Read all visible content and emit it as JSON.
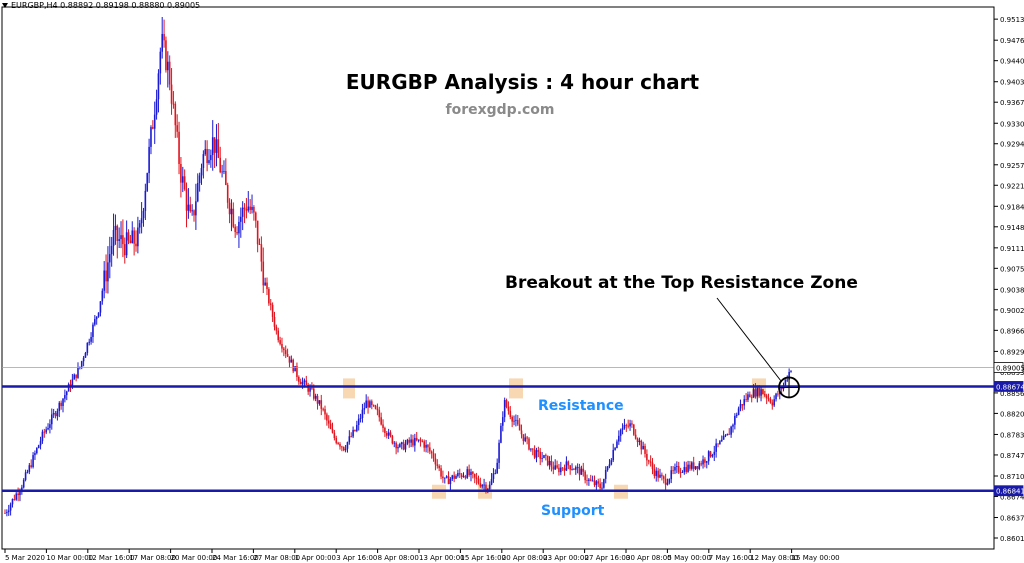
{
  "header": {
    "ticker": "EURGBP,H4  0.88892 0.89198 0.88880 0.89005"
  },
  "annotations": {
    "title": "EURGBP Analysis : 4 hour chart",
    "watermark": "forexgdp.com",
    "breakout": "Breakout at the Top Resistance Zone",
    "resistance": "Resistance",
    "support": "Support"
  },
  "colors": {
    "bull": "#1a1ad4",
    "bear": "#e0141e",
    "level_line": "#1a1aa8",
    "highlight": "#f5c99a",
    "zone_label": "#1e90ff"
  },
  "chart_data": {
    "type": "candlestick",
    "title": "EURGBP Analysis : 4 hour chart",
    "symbol": "EURGBP",
    "timeframe": "H4",
    "ohlc_current": {
      "open": 0.88892,
      "high": 0.89198,
      "low": 0.8888,
      "close": 0.89005
    },
    "ylim": [
      0.8601,
      0.9515
    ],
    "y_ticks": [
      "0.95130",
      "0.94760",
      "0.94400",
      "0.94030",
      "0.93670",
      "0.93300",
      "0.92940",
      "0.92570",
      "0.92210",
      "0.91840",
      "0.91480",
      "0.91110",
      "0.90750",
      "0.90380",
      "0.90020",
      "0.89660",
      "0.89290",
      "0.88930",
      "0.88560",
      "0.88200",
      "0.87830",
      "0.87470",
      "0.87100",
      "0.86740",
      "0.86370",
      "0.86010"
    ],
    "x_ticks": [
      "5 Mar 2020",
      "10 Mar 00:00",
      "12 Mar 16:00",
      "17 Mar 08:00",
      "20 Mar 00:00",
      "24 Mar 16:00",
      "27 Mar 08:00",
      "1 Apr 00:00",
      "3 Apr 16:00",
      "8 Apr 08:00",
      "13 Apr 00:00",
      "15 Apr 16:00",
      "20 Apr 08:00",
      "23 Apr 00:00",
      "27 Apr 16:00",
      "30 Apr 08:00",
      "5 May 00:00",
      "7 May 16:00",
      "12 May 08:00",
      "15 May 00:00"
    ],
    "price_labels": [
      {
        "value": "0.89005",
        "style": "current"
      },
      {
        "value": "0.88674",
        "style": "resistance"
      },
      {
        "value": "0.86841",
        "style": "support"
      }
    ],
    "levels": {
      "resistance": 0.88674,
      "support": 0.86841,
      "current": 0.89005
    },
    "price_path": [
      [
        0,
        0.8645
      ],
      [
        10,
        0.87
      ],
      [
        20,
        0.878
      ],
      [
        30,
        0.884
      ],
      [
        40,
        0.89
      ],
      [
        50,
        0.9
      ],
      [
        58,
        0.913
      ],
      [
        66,
        0.9115
      ],
      [
        72,
        0.913
      ],
      [
        80,
        0.935
      ],
      [
        84,
        0.9475
      ],
      [
        88,
        0.942
      ],
      [
        94,
        0.925
      ],
      [
        100,
        0.915
      ],
      [
        106,
        0.927
      ],
      [
        112,
        0.93
      ],
      [
        118,
        0.922
      ],
      [
        124,
        0.915
      ],
      [
        130,
        0.919
      ],
      [
        134,
        0.916
      ],
      [
        140,
        0.904
      ],
      [
        146,
        0.896
      ],
      [
        152,
        0.892
      ],
      [
        158,
        0.888
      ],
      [
        164,
        0.886
      ],
      [
        170,
        0.883
      ],
      [
        176,
        0.878
      ],
      [
        182,
        0.876
      ],
      [
        188,
        0.879
      ],
      [
        194,
        0.884
      ],
      [
        200,
        0.882
      ],
      [
        206,
        0.878
      ],
      [
        212,
        0.876
      ],
      [
        218,
        0.877
      ],
      [
        224,
        0.877
      ],
      [
        230,
        0.8745
      ],
      [
        236,
        0.87
      ],
      [
        242,
        0.871
      ],
      [
        248,
        0.8715
      ],
      [
        254,
        0.87
      ],
      [
        260,
        0.869
      ],
      [
        264,
        0.873
      ],
      [
        268,
        0.884
      ],
      [
        272,
        0.8815
      ],
      [
        278,
        0.878
      ],
      [
        284,
        0.875
      ],
      [
        290,
        0.874
      ],
      [
        296,
        0.872
      ],
      [
        302,
        0.873
      ],
      [
        308,
        0.872
      ],
      [
        314,
        0.87
      ],
      [
        320,
        0.869
      ],
      [
        324,
        0.873
      ],
      [
        330,
        0.879
      ],
      [
        336,
        0.88
      ],
      [
        342,
        0.876
      ],
      [
        348,
        0.872
      ],
      [
        354,
        0.87
      ],
      [
        360,
        0.872
      ],
      [
        366,
        0.8725
      ],
      [
        372,
        0.873
      ],
      [
        376,
        0.874
      ],
      [
        382,
        0.876
      ],
      [
        388,
        0.878
      ],
      [
        394,
        0.883
      ],
      [
        400,
        0.8855
      ],
      [
        406,
        0.886
      ],
      [
        412,
        0.884
      ],
      [
        418,
        0.887
      ],
      [
        422,
        0.89
      ]
    ],
    "highlight_marks": [
      {
        "x": 0.88674,
        "label": "resistance-touch-1"
      }
    ]
  }
}
